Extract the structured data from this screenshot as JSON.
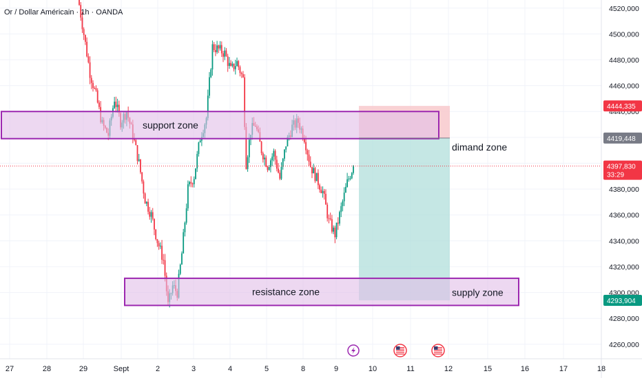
{
  "chart_data": {
    "type": "candlestick",
    "title": "Or / Dollar Américain · 1h · OANDA",
    "ylim": [
      4253,
      4522
    ],
    "x_axis": {
      "ticks": [
        "27",
        "28",
        "29",
        "Sept",
        "2",
        "3",
        "4",
        "5",
        "8",
        "9",
        "10",
        "11",
        "12",
        "15",
        "16",
        "17",
        "18"
      ]
    },
    "y_axis": {
      "ticks": [
        4260,
        4280,
        4300,
        4320,
        4340,
        4360,
        4380,
        4400,
        4420,
        4440,
        4460,
        4480,
        4500,
        4520
      ],
      "tick_labels": [
        "4260,000",
        "4280,000",
        "4300,000",
        "4320,000",
        "4340,000",
        "4360,000",
        "4380,000",
        "4400,000",
        "4420,000",
        "4440,000",
        "4460,000",
        "4480,000",
        "4500,000",
        "4520,000"
      ]
    },
    "price_path": [
      [
        0,
        4530
      ],
      [
        4,
        4500
      ],
      [
        8,
        4470
      ],
      [
        12,
        4452
      ],
      [
        16,
        4430
      ],
      [
        20,
        4422
      ],
      [
        24,
        4450
      ],
      [
        28,
        4432
      ],
      [
        32,
        4440
      ],
      [
        36,
        4422
      ],
      [
        40,
        4400
      ],
      [
        44,
        4372
      ],
      [
        48,
        4360
      ],
      [
        52,
        4340
      ],
      [
        56,
        4325
      ],
      [
        59,
        4290
      ],
      [
        62,
        4305
      ],
      [
        65,
        4300
      ],
      [
        68,
        4330
      ],
      [
        72,
        4380
      ],
      [
        76,
        4390
      ],
      [
        80,
        4420
      ],
      [
        84,
        4435
      ],
      [
        88,
        4490
      ],
      [
        92,
        4488
      ],
      [
        96,
        4485
      ],
      [
        100,
        4472
      ],
      [
        104,
        4478
      ],
      [
        108,
        4465
      ],
      [
        110,
        4400
      ],
      [
        113,
        4425
      ],
      [
        116,
        4430
      ],
      [
        120,
        4410
      ],
      [
        124,
        4398
      ],
      [
        128,
        4408
      ],
      [
        132,
        4388
      ],
      [
        136,
        4415
      ],
      [
        140,
        4428
      ],
      [
        144,
        4432
      ],
      [
        148,
        4420
      ],
      [
        152,
        4398
      ],
      [
        156,
        4388
      ],
      [
        160,
        4378
      ],
      [
        164,
        4355
      ],
      [
        168,
        4345
      ],
      [
        172,
        4365
      ],
      [
        176,
        4385
      ],
      [
        180,
        4398
      ]
    ],
    "zones": [
      {
        "name": "support",
        "label": "support zone",
        "y_top": 4440,
        "y_bottom": 4419
      },
      {
        "name": "resistance",
        "label": "resistance zone",
        "y_top": 4311,
        "y_bottom": 4290
      }
    ],
    "zone_labels": {
      "support": "support zone",
      "resistance": "resistance zone",
      "dimand": "dimand zone",
      "supply": "supply zone"
    },
    "position": {
      "entry": 4419.448,
      "stop": 4444.335,
      "target": 4293.904
    },
    "price_badges": [
      {
        "label": "4444,335",
        "value": 4444.335,
        "color": "#f23645"
      },
      {
        "label": "4419,448",
        "value": 4419.448,
        "color": "#787b86"
      },
      {
        "label": "4397,830",
        "sub": "33:29",
        "value": 4397.83,
        "color": "#f23645"
      },
      {
        "label": "4293,904",
        "value": 4293.904,
        "color": "#089981"
      }
    ],
    "current_price": 4397.83,
    "events": [
      {
        "day": "9",
        "icon": "lightning-icon",
        "color": "#9c27b0"
      },
      {
        "day": "11",
        "icon": "us-flag-icon",
        "color": "#f23645"
      },
      {
        "day": "12",
        "icon": "us-flag-icon",
        "color": "#f23645"
      }
    ],
    "colors": {
      "up": "#089981",
      "down": "#f23645",
      "zone_fill": "#e1bee7",
      "zone_border": "#9c27b0",
      "target_fill": "#b2dfdb",
      "stop_fill": "#f8c9cd"
    },
    "grid": true
  }
}
